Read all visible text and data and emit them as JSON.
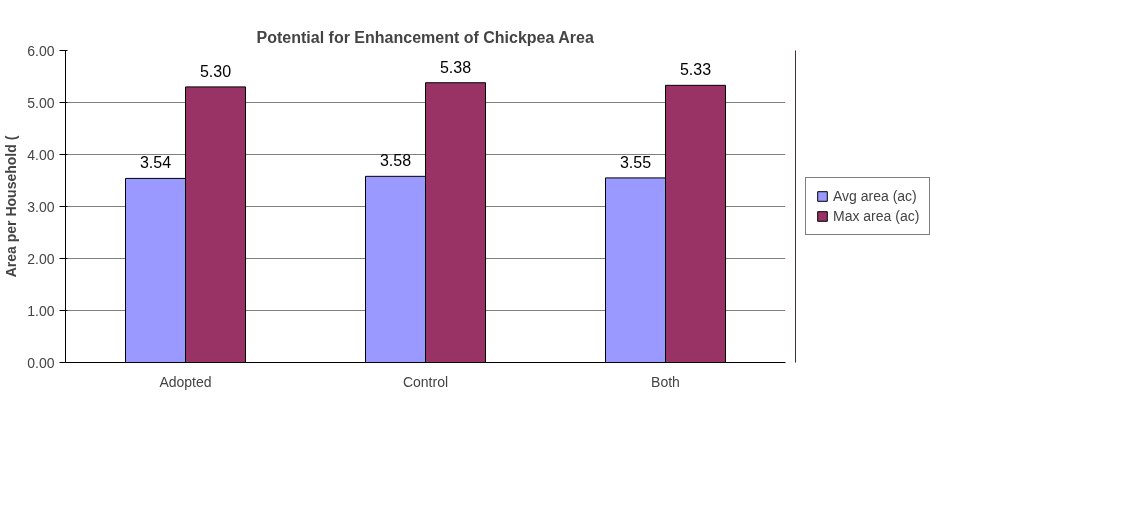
{
  "chart_data": {
    "type": "bar",
    "title": "Potential for Enhancement of Chickpea Area",
    "ylabel": "Area per Household (",
    "categories": [
      "Adopted",
      "Control",
      "Both"
    ],
    "series": [
      {
        "name": "Avg area (ac)",
        "color": "#9999ff",
        "values": [
          3.54,
          3.58,
          3.55
        ],
        "value_labels": [
          "3.54",
          "3.58",
          "3.55"
        ]
      },
      {
        "name": "Max area (ac)",
        "color": "#993366",
        "values": [
          5.3,
          5.38,
          5.33
        ],
        "value_labels": [
          "5.30",
          "5.38",
          "5.33"
        ]
      }
    ],
    "ylim": [
      0,
      6
    ],
    "yticks": [
      {
        "value": 0,
        "label": "0.00"
      },
      {
        "value": 1,
        "label": "1.00"
      },
      {
        "value": 2,
        "label": "2.00"
      },
      {
        "value": 3,
        "label": "3.00"
      },
      {
        "value": 4,
        "label": "4.00"
      },
      {
        "value": 5,
        "label": "5.00"
      },
      {
        "value": 6,
        "label": "6.00"
      }
    ],
    "grid": "y",
    "legend": "right"
  }
}
